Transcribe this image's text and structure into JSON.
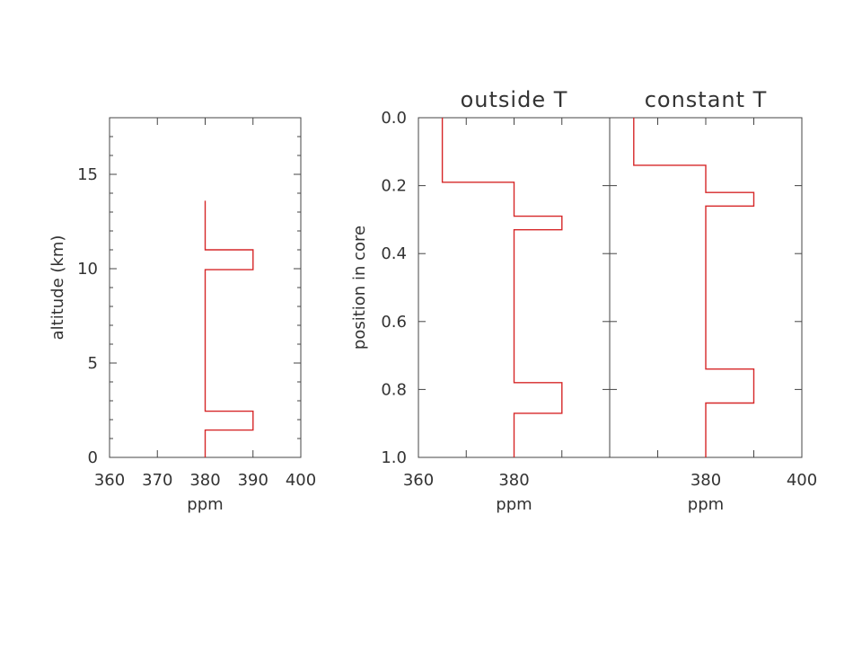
{
  "chart_data": [
    {
      "type": "line",
      "title": "",
      "xlabel": "ppm",
      "ylabel": "altitude (km)",
      "xlim": [
        360,
        400
      ],
      "ylim": [
        0,
        18
      ],
      "x_ticks": [
        360,
        370,
        380,
        390,
        400
      ],
      "y_ticks": [
        0,
        5,
        10,
        15
      ],
      "grid": false,
      "series": [
        {
          "color": "#d62728",
          "points": [
            [
              380,
              0
            ],
            [
              380,
              1.45
            ],
            [
              390,
              1.45
            ],
            [
              390,
              2.45
            ],
            [
              380,
              2.45
            ],
            [
              380,
              9.95
            ],
            [
              390,
              9.95
            ],
            [
              390,
              11.0
            ],
            [
              380,
              11.0
            ],
            [
              380,
              13.6
            ]
          ]
        }
      ]
    },
    {
      "type": "line",
      "title": "outside T",
      "xlabel": "ppm",
      "ylabel": "position in core",
      "xlim": [
        360,
        400
      ],
      "ylim": [
        1.0,
        0.0
      ],
      "x_ticks": [
        360,
        380
      ],
      "y_ticks": [
        0.0,
        0.2,
        0.4,
        0.6,
        0.8,
        1.0
      ],
      "grid": false,
      "series": [
        {
          "color": "#d62728",
          "points": [
            [
              365,
              0.0
            ],
            [
              365,
              0.19
            ],
            [
              380,
              0.19
            ],
            [
              380,
              0.29
            ],
            [
              390,
              0.29
            ],
            [
              390,
              0.33
            ],
            [
              380,
              0.33
            ],
            [
              380,
              0.78
            ],
            [
              390,
              0.78
            ],
            [
              390,
              0.87
            ],
            [
              380,
              0.87
            ],
            [
              380,
              1.0
            ]
          ]
        }
      ]
    },
    {
      "type": "line",
      "title": "constant T",
      "xlabel": "ppm",
      "ylabel": "",
      "xlim": [
        360,
        400
      ],
      "ylim": [
        1.0,
        0.0
      ],
      "x_ticks": [
        380,
        400
      ],
      "y_ticks": [
        0.0,
        0.2,
        0.4,
        0.6,
        0.8,
        1.0
      ],
      "grid": false,
      "series": [
        {
          "color": "#d62728",
          "points": [
            [
              365,
              0.0
            ],
            [
              365,
              0.14
            ],
            [
              380,
              0.14
            ],
            [
              380,
              0.22
            ],
            [
              390,
              0.22
            ],
            [
              390,
              0.26
            ],
            [
              380,
              0.26
            ],
            [
              380,
              0.74
            ],
            [
              390,
              0.74
            ],
            [
              390,
              0.84
            ],
            [
              380,
              0.84
            ],
            [
              380,
              1.0
            ]
          ]
        }
      ]
    }
  ]
}
